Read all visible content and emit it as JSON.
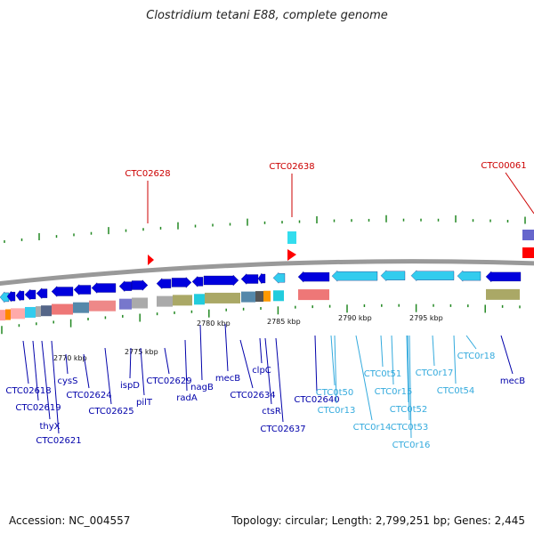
{
  "title": "Clostridium tetani E88, complete genome",
  "footer": {
    "accession": "Accession: NC_004557",
    "summary": "Topology: circular; Length: 2,799,251 bp; Genes: 2,445"
  },
  "colors": {
    "red_label": "#cc0000",
    "blue_label": "#0000aa",
    "cyan_label": "#33aadd",
    "dark_blue_gene": "#0000dd",
    "cyan_gene": "#33ccee",
    "backbone": "#999999",
    "tick_green": "#228822"
  },
  "top_labels": [
    "CTC02628",
    "CTC02638",
    "CTC00061"
  ],
  "scale_labels": [
    "2770 kbp",
    "2775 kbp",
    "2780 kbp",
    "2785 kbp",
    "2790 kbp",
    "2795 kbp"
  ],
  "gene_labels": [
    "CTC02618",
    "CTC02619",
    "thyX",
    "CTC02621",
    "cysS",
    "CTC02624",
    "CTC02625",
    "ispD",
    "pilT",
    "CTC02629",
    "radA",
    "nagB",
    "mecB",
    "CTC02634",
    "clpC",
    "ctsR",
    "CTC02637",
    "CTC02640",
    "CTC0t50",
    "CTC0r13",
    "CTC0r14",
    "CTC0t51",
    "CTC0r15",
    "CTC0t52",
    "CTC0t53",
    "CTC0r16",
    "CTC0r17",
    "CTC0t54",
    "CTC0r18",
    "mecB"
  ]
}
